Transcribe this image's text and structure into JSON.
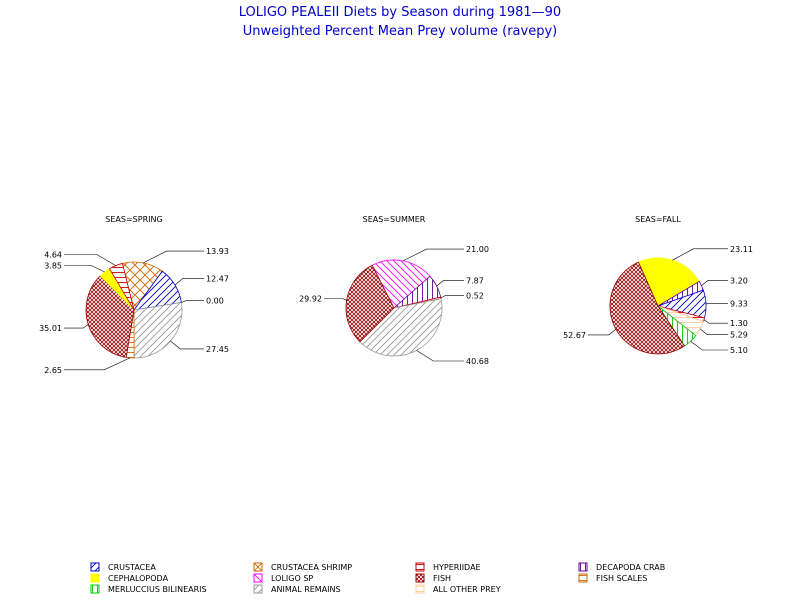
{
  "title": "LOLIGO PEALEII Diets by Season during 1981—90",
  "subtitle": "Unweighted Percent Mean Prey volume (ravepy)",
  "categories": [
    {
      "name": "CRUSTACEA",
      "color": "#0000cc",
      "pattern": "hatch-diag-up"
    },
    {
      "name": "CRUSTACEA SHRIMP",
      "color": "#cc6600",
      "pattern": "crosshatch-diag"
    },
    {
      "name": "HYPERIIDAE",
      "color": "#cc0000",
      "pattern": "hatch-horizontal"
    },
    {
      "name": "DECAPODA CRAB",
      "color": "#660099",
      "pattern": "hatch-vertical"
    },
    {
      "name": "CEPHALOPODA",
      "color": "#ffff00",
      "pattern": "solid"
    },
    {
      "name": "LOLIGO SP",
      "color": "#ff00ff",
      "pattern": "hatch-diag-down"
    },
    {
      "name": "FISH",
      "color": "#990000",
      "pattern": "crosshatch-fine"
    },
    {
      "name": "FISH SCALES",
      "color": "#cc6600",
      "pattern": "hatch-horizontal"
    },
    {
      "name": "MERLUCCIUS BILINEARIS",
      "color": "#00cc00",
      "pattern": "hatch-vertical"
    },
    {
      "name": "ANIMAL REMAINS",
      "color": "#999999",
      "pattern": "hatch-diag-up"
    },
    {
      "name": "ALL OTHER PREY",
      "color": "#ffcc99",
      "pattern": "hatch-horizontal"
    }
  ],
  "chart_data": [
    {
      "type": "pie",
      "title": "SEAS=SPRING",
      "slices": [
        {
          "label": "13.93",
          "value": 13.93,
          "category": "CRUSTACEA SHRIMP"
        },
        {
          "label": "12.47",
          "value": 12.47,
          "category": "CRUSTACEA"
        },
        {
          "label": "0.00",
          "value": 0.0,
          "category": "DECAPODA CRAB"
        },
        {
          "label": "27.45",
          "value": 27.45,
          "category": "ANIMAL REMAINS"
        },
        {
          "label": "2.65",
          "value": 2.65,
          "category": "FISH SCALES"
        },
        {
          "label": "35.01",
          "value": 35.01,
          "category": "FISH"
        },
        {
          "label": "3.85",
          "value": 3.85,
          "category": "CEPHALOPODA"
        },
        {
          "label": "4.64",
          "value": 4.64,
          "category": "HYPERIIDAE"
        }
      ]
    },
    {
      "type": "pie",
      "title": "SEAS=SUMMER",
      "slices": [
        {
          "label": "21.00",
          "value": 21.0,
          "category": "LOLIGO SP"
        },
        {
          "label": "7.87",
          "value": 7.87,
          "category": "DECAPODA CRAB"
        },
        {
          "label": "0.52",
          "value": 0.52,
          "category": "HYPERIIDAE"
        },
        {
          "label": "40.68",
          "value": 40.68,
          "category": "ANIMAL REMAINS"
        },
        {
          "label": "29.92",
          "value": 29.92,
          "category": "FISH"
        }
      ]
    },
    {
      "type": "pie",
      "title": "SEAS=FALL",
      "slices": [
        {
          "label": "23.11",
          "value": 23.11,
          "category": "CEPHALOPODA"
        },
        {
          "label": "3.20",
          "value": 3.2,
          "category": "DECAPODA CRAB"
        },
        {
          "label": "9.33",
          "value": 9.33,
          "category": "CRUSTACEA"
        },
        {
          "label": "1.30",
          "value": 1.3,
          "category": "HYPERIIDAE"
        },
        {
          "label": "5.29",
          "value": 5.29,
          "category": "ALL OTHER PREY"
        },
        {
          "label": "5.10",
          "value": 5.1,
          "category": "MERLUCCIUS BILINEARIS"
        },
        {
          "label": "52.67",
          "value": 52.67,
          "category": "FISH"
        }
      ]
    }
  ]
}
